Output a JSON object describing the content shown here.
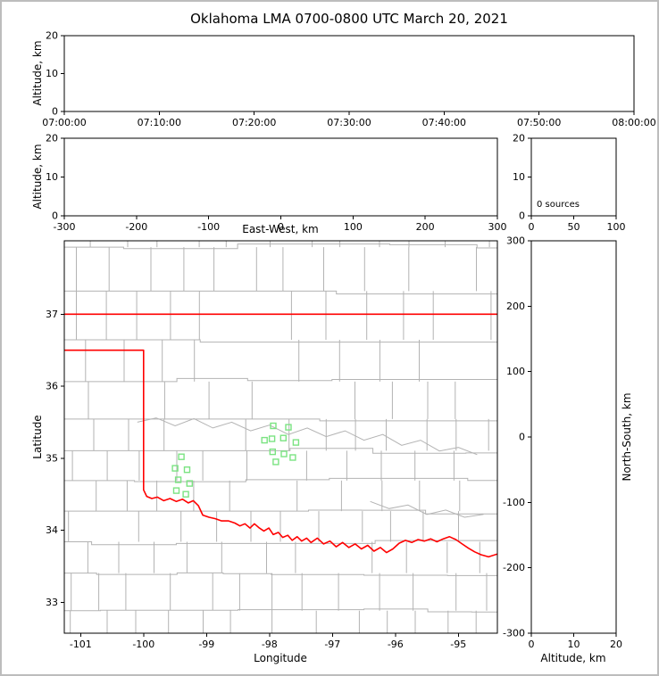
{
  "title": "Oklahoma LMA 0700-0800 UTC March 20, 2021",
  "colors": {
    "background": "#ffffff",
    "figure_frame": "#bdbdbd",
    "axis": "#000000",
    "county": "#b3b3b3",
    "river": "#b3b3b3",
    "state_border": "#ff0000",
    "station": "#7be382"
  },
  "chart_data": [
    {
      "id": "time_height",
      "type": "scatter",
      "xlabel": "",
      "ylabel": "Altitude, km",
      "xlim": [
        0,
        3600
      ],
      "xticks": [
        0,
        600,
        1200,
        1800,
        2400,
        3000,
        3600
      ],
      "xtick_labels": [
        "07:00:00",
        "07:10:00",
        "07:20:00",
        "07:30:00",
        "07:40:00",
        "07:50:00",
        "08:00:00"
      ],
      "ylim": [
        0,
        20
      ],
      "yticks": [
        0,
        10,
        20
      ],
      "ytick_labels": [
        "0",
        "10",
        "20"
      ],
      "points": []
    },
    {
      "id": "ew_height",
      "type": "scatter",
      "xlabel": "East-West, km",
      "ylabel": "Altitude, km",
      "xlim": [
        -300,
        300
      ],
      "xticks": [
        -300,
        -200,
        -100,
        0,
        100,
        200,
        300
      ],
      "xtick_labels": [
        "-300",
        "-200",
        "-100",
        "0",
        "100",
        "200",
        "300"
      ],
      "ylim": [
        0,
        20
      ],
      "yticks": [
        0,
        10,
        20
      ],
      "ytick_labels": [
        "0",
        "10",
        "20"
      ],
      "points": []
    },
    {
      "id": "alt_histogram",
      "type": "scatter",
      "annotation": "0 sources",
      "sources_count": 0,
      "xlim": [
        0,
        100
      ],
      "xticks": [
        0,
        50,
        100
      ],
      "xtick_labels": [
        "0",
        "50",
        "100"
      ],
      "ylim": [
        0,
        20
      ],
      "yticks": [
        0,
        10,
        20
      ],
      "ytick_labels": [
        "0",
        "10",
        "20"
      ],
      "points": []
    },
    {
      "id": "plan_view",
      "type": "scatter",
      "xlabel": "Longitude",
      "ylabel": "Latitude",
      "xlim": [
        -101.26,
        -94.38
      ],
      "xticks": [
        -101,
        -100,
        -99,
        -98,
        -97,
        -96,
        -95
      ],
      "xtick_labels": [
        "-101",
        "-100",
        "-99",
        "-98",
        "-97",
        "-96",
        "-95"
      ],
      "ylim": [
        32.57,
        38.02
      ],
      "yticks": [
        33,
        34,
        35,
        36,
        37
      ],
      "ytick_labels": [
        "33",
        "34",
        "35",
        "36",
        "37"
      ],
      "points": [],
      "stations": [
        [
          -97.94,
          35.45
        ],
        [
          -97.7,
          35.43
        ],
        [
          -98.08,
          35.25
        ],
        [
          -97.96,
          35.27
        ],
        [
          -97.78,
          35.28
        ],
        [
          -97.58,
          35.22
        ],
        [
          -97.95,
          35.09
        ],
        [
          -97.77,
          35.06
        ],
        [
          -97.9,
          34.95
        ],
        [
          -97.63,
          35.01
        ],
        [
          -99.4,
          35.02
        ],
        [
          -99.5,
          34.86
        ],
        [
          -99.31,
          34.84
        ],
        [
          -99.45,
          34.7
        ],
        [
          -99.27,
          34.65
        ],
        [
          -99.48,
          34.55
        ],
        [
          -99.33,
          34.5
        ]
      ],
      "state_boundary": [
        [
          [
            -102,
            37
          ],
          [
            -94,
            37
          ]
        ],
        [
          [
            -102,
            36.5
          ],
          [
            -100.0,
            36.5
          ],
          [
            -100.0,
            34.56
          ],
          [
            -99.95,
            34.47
          ],
          [
            -99.87,
            34.44
          ],
          [
            -99.78,
            34.46
          ],
          [
            -99.68,
            34.41
          ],
          [
            -99.58,
            34.44
          ],
          [
            -99.48,
            34.4
          ],
          [
            -99.38,
            34.43
          ],
          [
            -99.29,
            34.38
          ],
          [
            -99.21,
            34.41
          ],
          [
            -99.13,
            34.34
          ],
          [
            -99.06,
            34.21
          ],
          [
            -98.96,
            34.18
          ],
          [
            -98.86,
            34.16
          ],
          [
            -98.76,
            34.13
          ],
          [
            -98.65,
            34.13
          ],
          [
            -98.55,
            34.1
          ],
          [
            -98.47,
            34.06
          ],
          [
            -98.39,
            34.09
          ],
          [
            -98.31,
            34.03
          ],
          [
            -98.24,
            34.09
          ],
          [
            -98.16,
            34.03
          ],
          [
            -98.09,
            33.99
          ],
          [
            -98.01,
            34.03
          ],
          [
            -97.94,
            33.94
          ],
          [
            -97.86,
            33.97
          ],
          [
            -97.79,
            33.9
          ],
          [
            -97.71,
            33.93
          ],
          [
            -97.64,
            33.86
          ],
          [
            -97.56,
            33.91
          ],
          [
            -97.49,
            33.85
          ],
          [
            -97.41,
            33.89
          ],
          [
            -97.34,
            33.83
          ],
          [
            -97.24,
            33.89
          ],
          [
            -97.14,
            33.81
          ],
          [
            -97.04,
            33.85
          ],
          [
            -96.94,
            33.77
          ],
          [
            -96.84,
            33.83
          ],
          [
            -96.74,
            33.76
          ],
          [
            -96.64,
            33.81
          ],
          [
            -96.54,
            33.74
          ],
          [
            -96.44,
            33.79
          ],
          [
            -96.34,
            33.71
          ],
          [
            -96.24,
            33.76
          ],
          [
            -96.14,
            33.69
          ],
          [
            -96.04,
            33.74
          ],
          [
            -95.94,
            33.82
          ],
          [
            -95.84,
            33.86
          ],
          [
            -95.74,
            33.83
          ],
          [
            -95.64,
            33.87
          ],
          [
            -95.54,
            33.85
          ],
          [
            -95.44,
            33.88
          ],
          [
            -95.34,
            33.84
          ],
          [
            -95.24,
            33.88
          ],
          [
            -95.14,
            33.91
          ],
          [
            -95.04,
            33.87
          ],
          [
            -94.94,
            33.81
          ],
          [
            -94.84,
            33.75
          ],
          [
            -94.74,
            33.7
          ],
          [
            -94.64,
            33.66
          ],
          [
            -94.52,
            33.63
          ],
          [
            -94.38,
            33.67
          ]
        ]
      ],
      "rivers": [
        [
          [
            -100.1,
            35.5
          ],
          [
            -99.8,
            35.56
          ],
          [
            -99.5,
            35.45
          ],
          [
            -99.2,
            35.55
          ],
          [
            -98.9,
            35.42
          ],
          [
            -98.6,
            35.5
          ],
          [
            -98.3,
            35.38
          ],
          [
            -98.0,
            35.46
          ],
          [
            -97.7,
            35.33
          ],
          [
            -97.4,
            35.42
          ],
          [
            -97.1,
            35.3
          ],
          [
            -96.8,
            35.38
          ],
          [
            -96.5,
            35.25
          ],
          [
            -96.2,
            35.33
          ],
          [
            -95.9,
            35.18
          ],
          [
            -95.6,
            35.25
          ],
          [
            -95.3,
            35.1
          ],
          [
            -95.0,
            35.15
          ],
          [
            -94.7,
            35.05
          ]
        ],
        [
          [
            -96.4,
            34.4
          ],
          [
            -96.1,
            34.3
          ],
          [
            -95.8,
            34.35
          ],
          [
            -95.5,
            34.22
          ],
          [
            -95.2,
            34.28
          ],
          [
            -94.9,
            34.18
          ],
          [
            -94.6,
            34.22
          ]
        ]
      ],
      "county_grid": {
        "seed": 13,
        "lon_min": -101.6,
        "lon_max": -94.1,
        "lat_min": 32.3,
        "lat_max": 38.2,
        "cell_deg": 0.55
      }
    },
    {
      "id": "ns_height",
      "type": "scatter",
      "xlabel": "Altitude, km",
      "ylabel": "North-South, km",
      "xlim": [
        0,
        20
      ],
      "xticks": [
        0,
        10,
        20
      ],
      "xtick_labels": [
        "0",
        "10",
        "20"
      ],
      "ylim": [
        -300,
        300
      ],
      "yticks": [
        -300,
        -200,
        -100,
        0,
        100,
        200,
        300
      ],
      "ytick_labels": [
        "-300",
        "-200",
        "-100",
        "0",
        "100",
        "200",
        "300"
      ],
      "points": []
    }
  ]
}
